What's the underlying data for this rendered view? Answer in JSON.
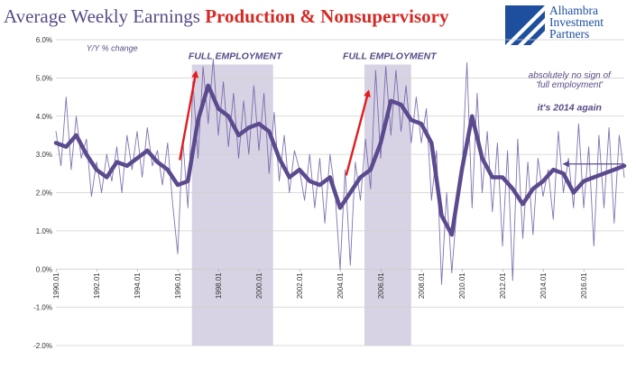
{
  "title": {
    "part1": "Average Weekly Earnings ",
    "part2": "Production & Nonsupervisory"
  },
  "logo": {
    "lines": [
      "Alhambra",
      "Investment",
      "Partners"
    ],
    "icon": "alhambra-logo-mark",
    "color": "#1e4f9e"
  },
  "colors": {
    "series": "#6b5aa3",
    "smoothed": "#5c4a8e",
    "shade": "#d8d3e4",
    "arrow": "#e31c1c",
    "title_red": "#d42a26",
    "title_purple": "#5a4b86"
  },
  "chart_data": {
    "type": "line",
    "ylabel": "Y/Y % change",
    "ylim": [
      -2.0,
      6.0
    ],
    "yticks": [
      "-2.0%",
      "-1.0%",
      "0.0%",
      "1.0%",
      "2.0%",
      "3.0%",
      "4.0%",
      "5.0%",
      "6.0%"
    ],
    "xlim": [
      1990.0,
      2018.0
    ],
    "xticks": [
      "1990.01",
      "1992.01",
      "1994.01",
      "1996.01",
      "1998.01",
      "2000.01",
      "2002.01",
      "2004.01",
      "2006.01",
      "2008.01",
      "2010.01",
      "2012.01",
      "2014.01",
      "2016.01"
    ],
    "grid": true,
    "shaded_periods": [
      {
        "label": "FULL EMPLOYMENT",
        "start": 1996.7,
        "end": 2000.7
      },
      {
        "label": "FULL EMPLOYMENT",
        "start": 2005.2,
        "end": 2007.5
      }
    ],
    "annotations": [
      {
        "text": "absolutely no sign of",
        "x": 2015.3,
        "y": 5.0
      },
      {
        "text": "'full employment'",
        "x": 2015.3,
        "y": 4.75
      },
      {
        "text": "it's 2014 again",
        "x": 2015.3,
        "y": 4.15
      }
    ],
    "arrows": [
      {
        "from": [
          1996.1,
          2.85
        ],
        "to": [
          1996.9,
          5.15
        ]
      },
      {
        "from": [
          2004.3,
          2.45
        ],
        "to": [
          2005.4,
          4.65
        ]
      }
    ],
    "reference_line": {
      "x_from": 2018.0,
      "x_to": 2015.0,
      "y": 2.75
    },
    "series": [
      {
        "name": "smoothed",
        "x": [
          1990.0,
          1990.5,
          1991.0,
          1991.5,
          1992.0,
          1992.5,
          1993.0,
          1993.5,
          1994.0,
          1994.5,
          1995.0,
          1995.5,
          1996.0,
          1996.5,
          1997.0,
          1997.5,
          1998.0,
          1998.5,
          1999.0,
          1999.5,
          2000.0,
          2000.5,
          2001.0,
          2001.5,
          2002.0,
          2002.5,
          2003.0,
          2003.5,
          2004.0,
          2004.5,
          2005.0,
          2005.5,
          2006.0,
          2006.5,
          2007.0,
          2007.5,
          2008.0,
          2008.5,
          2009.0,
          2009.5,
          2010.0,
          2010.5,
          2011.0,
          2011.5,
          2012.0,
          2012.5,
          2013.0,
          2013.5,
          2014.0,
          2014.5,
          2015.0,
          2015.5,
          2016.0,
          2016.5,
          2017.0,
          2017.5,
          2018.0
        ],
        "values": [
          3.3,
          3.2,
          3.5,
          3.0,
          2.6,
          2.4,
          2.8,
          2.7,
          2.9,
          3.1,
          2.8,
          2.6,
          2.2,
          2.3,
          3.9,
          4.8,
          4.2,
          4.0,
          3.5,
          3.7,
          3.8,
          3.6,
          2.9,
          2.4,
          2.6,
          2.3,
          2.2,
          2.4,
          1.6,
          2.0,
          2.4,
          2.6,
          3.3,
          4.4,
          4.3,
          3.9,
          3.8,
          3.3,
          1.4,
          0.9,
          2.6,
          4.0,
          2.9,
          2.4,
          2.4,
          2.1,
          1.7,
          2.1,
          2.3,
          2.6,
          2.5,
          2.0,
          2.3,
          2.4,
          2.5,
          2.6,
          2.7
        ]
      },
      {
        "name": "monthly",
        "x": [
          1990.0,
          1990.25,
          1990.5,
          1990.75,
          1991.0,
          1991.25,
          1991.5,
          1991.75,
          1992.0,
          1992.25,
          1992.5,
          1992.75,
          1993.0,
          1993.25,
          1993.5,
          1993.75,
          1994.0,
          1994.25,
          1994.5,
          1994.75,
          1995.0,
          1995.25,
          1995.5,
          1995.75,
          1996.0,
          1996.25,
          1996.5,
          1996.75,
          1997.0,
          1997.25,
          1997.5,
          1997.75,
          1998.0,
          1998.25,
          1998.5,
          1998.75,
          1999.0,
          1999.25,
          1999.5,
          1999.75,
          2000.0,
          2000.25,
          2000.5,
          2000.75,
          2001.0,
          2001.25,
          2001.5,
          2001.75,
          2002.0,
          2002.25,
          2002.5,
          2002.75,
          2003.0,
          2003.25,
          2003.5,
          2003.75,
          2004.0,
          2004.25,
          2004.5,
          2004.75,
          2005.0,
          2005.25,
          2005.5,
          2005.75,
          2006.0,
          2006.25,
          2006.5,
          2006.75,
          2007.0,
          2007.25,
          2007.5,
          2007.75,
          2008.0,
          2008.25,
          2008.5,
          2008.75,
          2009.0,
          2009.25,
          2009.5,
          2009.75,
          2010.0,
          2010.25,
          2010.5,
          2010.75,
          2011.0,
          2011.25,
          2011.5,
          2011.75,
          2012.0,
          2012.25,
          2012.5,
          2012.75,
          2013.0,
          2013.25,
          2013.5,
          2013.75,
          2014.0,
          2014.25,
          2014.5,
          2014.75,
          2015.0,
          2015.25,
          2015.5,
          2015.75,
          2016.0,
          2016.25,
          2016.5,
          2016.75,
          2017.0,
          2017.25,
          2017.5,
          2017.75,
          2018.0
        ],
        "values": [
          3.6,
          2.7,
          4.5,
          2.6,
          4.0,
          2.9,
          3.4,
          1.9,
          2.8,
          2.0,
          3.0,
          2.3,
          3.2,
          2.0,
          3.5,
          2.6,
          3.6,
          2.4,
          3.7,
          2.7,
          3.1,
          2.2,
          3.3,
          1.7,
          0.4,
          3.4,
          1.6,
          4.9,
          2.9,
          5.3,
          3.8,
          5.5,
          3.5,
          4.9,
          3.2,
          4.6,
          2.9,
          4.4,
          3.0,
          4.8,
          3.1,
          4.6,
          2.5,
          4.1,
          2.3,
          3.5,
          2.0,
          3.1,
          2.6,
          1.8,
          3.0,
          1.6,
          2.9,
          1.2,
          3.0,
          2.0,
          0.0,
          2.6,
          0.1,
          2.8,
          1.8,
          3.4,
          2.1,
          5.2,
          2.9,
          5.3,
          3.5,
          5.2,
          3.6,
          4.8,
          3.3,
          4.5,
          3.3,
          4.2,
          1.8,
          3.1,
          -0.4,
          2.0,
          -0.1,
          1.6,
          2.5,
          5.4,
          1.6,
          4.6,
          2.0,
          3.6,
          1.5,
          3.3,
          0.6,
          3.1,
          -0.3,
          3.4,
          0.8,
          2.8,
          0.9,
          2.9,
          1.9,
          2.6,
          1.3,
          3.6,
          2.0,
          2.9,
          1.6,
          3.8,
          1.6,
          3.2,
          0.6,
          3.5,
          1.6,
          3.7,
          1.2,
          3.5,
          2.4
        ]
      }
    ]
  }
}
